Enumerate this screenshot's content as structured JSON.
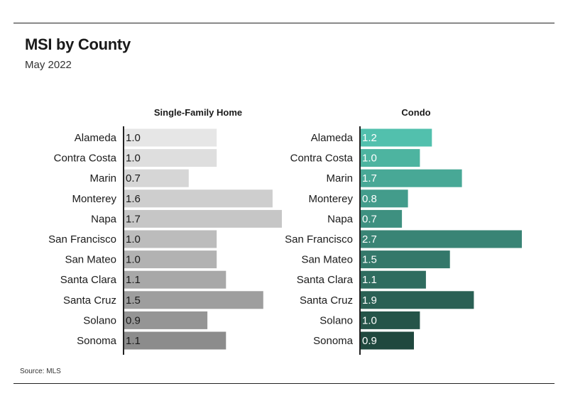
{
  "title": "MSI by County",
  "subtitle": "May 2022",
  "source": "Source: MLS",
  "chart_data": [
    {
      "type": "bar",
      "orientation": "horizontal",
      "panel_title": "Single-Family Home",
      "categories": [
        "Alameda",
        "Contra Costa",
        "Marin",
        "Monterey",
        "Napa",
        "San Francisco",
        "San Mateo",
        "Santa Clara",
        "Santa Cruz",
        "Solano",
        "Sonoma"
      ],
      "values": [
        1.0,
        1.0,
        0.7,
        1.6,
        1.7,
        1.0,
        1.0,
        1.1,
        1.5,
        0.9,
        1.1
      ],
      "labels": [
        "1.0",
        "1.0",
        "0.7",
        "1.6",
        "1.7",
        "1.0",
        "1.0",
        "1.1",
        "1.5",
        "0.9",
        "1.1"
      ],
      "colors": [
        "#e6e6e6",
        "#dedede",
        "#d6d6d6",
        "#cecece",
        "#c6c6c6",
        "#bcbcbc",
        "#b2b2b2",
        "#a8a8a8",
        "#9e9e9e",
        "#959595",
        "#8c8c8c"
      ],
      "value_label_color": "#1a1a1a",
      "xlim": [
        0,
        1.7
      ]
    },
    {
      "type": "bar",
      "orientation": "horizontal",
      "panel_title": "Condo",
      "categories": [
        "Alameda",
        "Contra Costa",
        "Marin",
        "Monterey",
        "Napa",
        "San Francisco",
        "San Mateo",
        "Santa Clara",
        "Santa Cruz",
        "Solano",
        "Sonoma"
      ],
      "values": [
        1.2,
        1.0,
        1.7,
        0.8,
        0.7,
        2.7,
        1.5,
        1.1,
        1.9,
        1.0,
        0.9
      ],
      "labels": [
        "1.2",
        "1.0",
        "1.7",
        "0.8",
        "0.7",
        "2.7",
        "1.5",
        "1.1",
        "1.9",
        "1.0",
        "0.9"
      ],
      "colors": [
        "#52c0ad",
        "#4db4a0",
        "#48a896",
        "#439c8b",
        "#3e9080",
        "#398475",
        "#34786a",
        "#2f6c5f",
        "#2a6054",
        "#255449",
        "#20483e"
      ],
      "value_label_color": "#ffffff",
      "xlim": [
        0,
        2.7
      ]
    }
  ]
}
